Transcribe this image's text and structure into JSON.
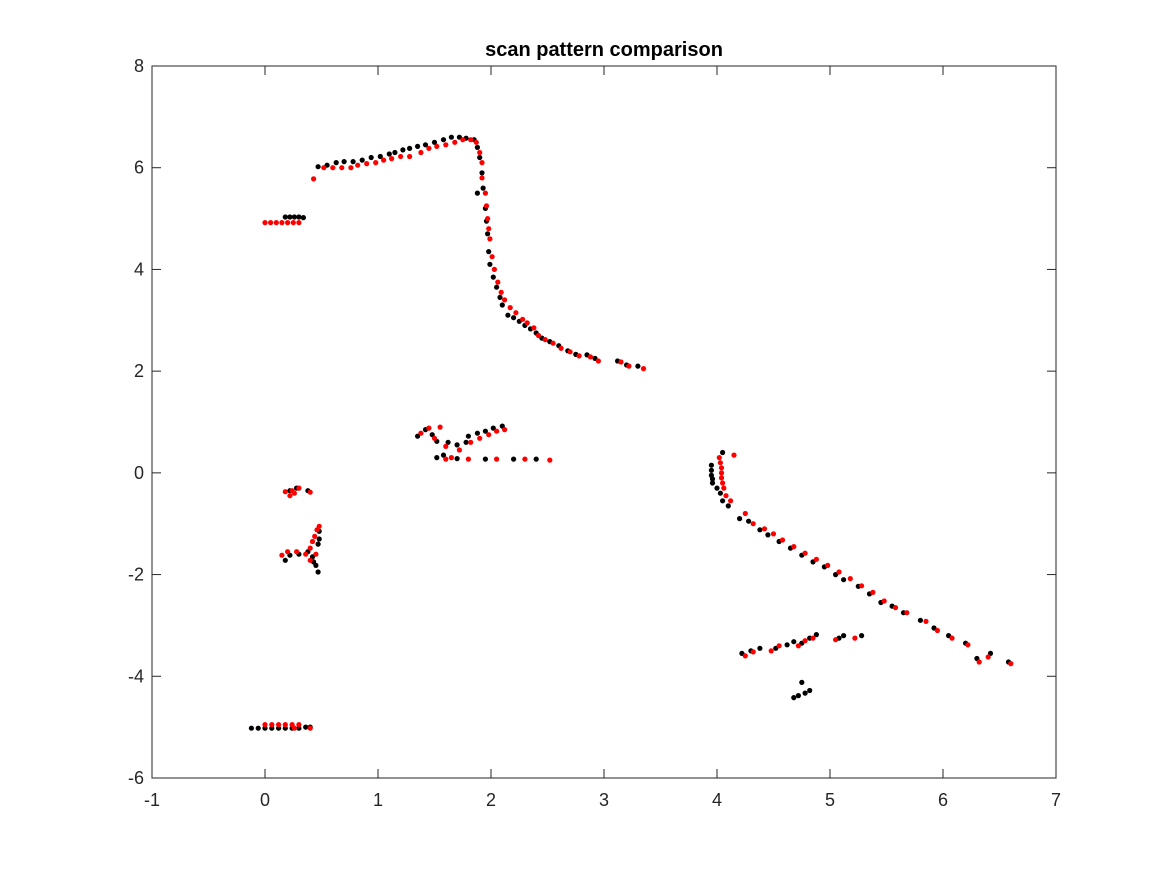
{
  "chart_data": {
    "type": "scatter",
    "title": "scan pattern comparison",
    "xlabel": "",
    "ylabel": "",
    "xlim": [
      -1,
      7
    ],
    "ylim": [
      -6,
      8
    ],
    "xticks": [
      -1,
      0,
      1,
      2,
      3,
      4,
      5,
      6,
      7
    ],
    "yticks": [
      -6,
      -4,
      -2,
      0,
      2,
      4,
      6,
      8
    ],
    "grid": false,
    "box": true,
    "series": [
      {
        "color": "#000000",
        "points": [
          [
            0.18,
            5.03
          ],
          [
            0.22,
            5.03
          ],
          [
            0.26,
            5.03
          ],
          [
            0.3,
            5.03
          ],
          [
            0.34,
            5.02
          ],
          [
            0.47,
            6.02
          ],
          [
            0.55,
            6.05
          ],
          [
            0.63,
            6.1
          ],
          [
            0.7,
            6.12
          ],
          [
            0.78,
            6.12
          ],
          [
            0.86,
            6.15
          ],
          [
            0.94,
            6.2
          ],
          [
            1.02,
            6.22
          ],
          [
            1.1,
            6.27
          ],
          [
            1.15,
            6.3
          ],
          [
            1.22,
            6.35
          ],
          [
            1.28,
            6.38
          ],
          [
            1.35,
            6.42
          ],
          [
            1.42,
            6.45
          ],
          [
            1.5,
            6.5
          ],
          [
            1.58,
            6.55
          ],
          [
            1.65,
            6.6
          ],
          [
            1.72,
            6.6
          ],
          [
            1.78,
            6.58
          ],
          [
            1.85,
            6.55
          ],
          [
            1.88,
            6.4
          ],
          [
            1.9,
            6.2
          ],
          [
            1.92,
            5.9
          ],
          [
            1.93,
            5.6
          ],
          [
            1.88,
            5.5
          ],
          [
            1.95,
            5.2
          ],
          [
            1.96,
            4.95
          ],
          [
            1.97,
            4.7
          ],
          [
            1.98,
            4.35
          ],
          [
            1.99,
            4.1
          ],
          [
            2.02,
            3.85
          ],
          [
            2.05,
            3.65
          ],
          [
            2.08,
            3.45
          ],
          [
            2.1,
            3.3
          ],
          [
            2.15,
            3.1
          ],
          [
            2.2,
            3.05
          ],
          [
            2.25,
            2.98
          ],
          [
            2.3,
            2.9
          ],
          [
            2.35,
            2.83
          ],
          [
            2.4,
            2.75
          ],
          [
            2.45,
            2.65
          ],
          [
            2.52,
            2.58
          ],
          [
            2.6,
            2.5
          ],
          [
            2.68,
            2.4
          ],
          [
            2.75,
            2.33
          ],
          [
            2.85,
            2.32
          ],
          [
            2.92,
            2.25
          ],
          [
            3.12,
            2.2
          ],
          [
            3.2,
            2.12
          ],
          [
            3.3,
            2.1
          ],
          [
            1.35,
            0.72
          ],
          [
            1.42,
            0.85
          ],
          [
            1.48,
            0.75
          ],
          [
            1.52,
            0.62
          ],
          [
            1.52,
            0.3
          ],
          [
            1.58,
            0.35
          ],
          [
            1.62,
            0.6
          ],
          [
            1.7,
            0.55
          ],
          [
            1.78,
            0.6
          ],
          [
            1.8,
            0.72
          ],
          [
            1.88,
            0.78
          ],
          [
            1.95,
            0.82
          ],
          [
            2.02,
            0.88
          ],
          [
            2.1,
            0.92
          ],
          [
            1.7,
            0.28
          ],
          [
            1.95,
            0.27
          ],
          [
            2.2,
            0.27
          ],
          [
            2.4,
            0.27
          ],
          [
            0.22,
            -0.35
          ],
          [
            0.28,
            -0.3
          ],
          [
            0.38,
            -0.35
          ],
          [
            0.18,
            -1.72
          ],
          [
            0.22,
            -1.62
          ],
          [
            0.3,
            -1.6
          ],
          [
            0.38,
            -1.55
          ],
          [
            0.42,
            -1.65
          ],
          [
            0.45,
            -1.82
          ],
          [
            0.47,
            -1.95
          ],
          [
            0.47,
            -1.4
          ],
          [
            0.48,
            -1.3
          ],
          [
            0.48,
            -1.15
          ],
          [
            0.43,
            -1.75
          ],
          [
            -0.12,
            -5.02
          ],
          [
            -0.06,
            -5.02
          ],
          [
            0.0,
            -5.02
          ],
          [
            0.06,
            -5.02
          ],
          [
            0.12,
            -5.02
          ],
          [
            0.18,
            -5.02
          ],
          [
            0.24,
            -5.02
          ],
          [
            0.3,
            -5.02
          ],
          [
            0.36,
            -5.0
          ],
          [
            0.4,
            -5.0
          ],
          [
            3.95,
            0.15
          ],
          [
            3.95,
            0.05
          ],
          [
            3.95,
            -0.05
          ],
          [
            3.96,
            -0.12
          ],
          [
            3.96,
            -0.2
          ],
          [
            4.0,
            -0.3
          ],
          [
            4.03,
            -0.4
          ],
          [
            4.05,
            -0.55
          ],
          [
            4.05,
            0.4
          ],
          [
            4.1,
            -0.65
          ],
          [
            4.2,
            -0.9
          ],
          [
            4.28,
            -0.95
          ],
          [
            4.38,
            -1.12
          ],
          [
            4.45,
            -1.22
          ],
          [
            4.55,
            -1.35
          ],
          [
            4.65,
            -1.48
          ],
          [
            4.75,
            -1.62
          ],
          [
            4.85,
            -1.75
          ],
          [
            4.95,
            -1.85
          ],
          [
            5.05,
            -2.0
          ],
          [
            5.12,
            -2.1
          ],
          [
            5.25,
            -2.23
          ],
          [
            5.35,
            -2.38
          ],
          [
            5.45,
            -2.55
          ],
          [
            5.55,
            -2.62
          ],
          [
            5.65,
            -2.75
          ],
          [
            5.8,
            -2.9
          ],
          [
            5.92,
            -3.05
          ],
          [
            6.05,
            -3.2
          ],
          [
            6.2,
            -3.35
          ],
          [
            6.3,
            -3.65
          ],
          [
            6.42,
            -3.55
          ],
          [
            6.58,
            -3.72
          ],
          [
            4.22,
            -3.55
          ],
          [
            4.3,
            -3.5
          ],
          [
            4.38,
            -3.45
          ],
          [
            4.52,
            -3.45
          ],
          [
            4.62,
            -3.38
          ],
          [
            4.68,
            -3.32
          ],
          [
            4.75,
            -3.35
          ],
          [
            4.82,
            -3.25
          ],
          [
            4.88,
            -3.18
          ],
          [
            5.08,
            -3.25
          ],
          [
            5.12,
            -3.2
          ],
          [
            5.28,
            -3.2
          ],
          [
            4.68,
            -4.42
          ],
          [
            4.72,
            -4.38
          ],
          [
            4.78,
            -4.33
          ],
          [
            4.82,
            -4.28
          ],
          [
            4.75,
            -4.12
          ]
        ]
      },
      {
        "color": "#ff0000",
        "points": [
          [
            0.0,
            4.92
          ],
          [
            0.05,
            4.92
          ],
          [
            0.1,
            4.92
          ],
          [
            0.15,
            4.92
          ],
          [
            0.2,
            4.92
          ],
          [
            0.25,
            4.92
          ],
          [
            0.3,
            4.92
          ],
          [
            0.43,
            5.78
          ],
          [
            0.52,
            6.0
          ],
          [
            0.6,
            6.0
          ],
          [
            0.68,
            6.0
          ],
          [
            0.76,
            6.0
          ],
          [
            0.82,
            6.05
          ],
          [
            0.9,
            6.08
          ],
          [
            0.98,
            6.1
          ],
          [
            1.05,
            6.15
          ],
          [
            1.12,
            6.18
          ],
          [
            1.2,
            6.22
          ],
          [
            1.28,
            6.22
          ],
          [
            1.38,
            6.3
          ],
          [
            1.45,
            6.38
          ],
          [
            1.52,
            6.42
          ],
          [
            1.6,
            6.45
          ],
          [
            1.68,
            6.5
          ],
          [
            1.75,
            6.55
          ],
          [
            1.82,
            6.55
          ],
          [
            1.87,
            6.5
          ],
          [
            1.9,
            6.3
          ],
          [
            1.92,
            6.1
          ],
          [
            1.92,
            5.8
          ],
          [
            1.95,
            5.5
          ],
          [
            1.96,
            5.25
          ],
          [
            1.97,
            5.0
          ],
          [
            1.98,
            4.8
          ],
          [
            1.99,
            4.6
          ],
          [
            2.01,
            4.25
          ],
          [
            2.03,
            4.0
          ],
          [
            2.06,
            3.75
          ],
          [
            2.09,
            3.55
          ],
          [
            2.12,
            3.4
          ],
          [
            2.17,
            3.25
          ],
          [
            2.22,
            3.15
          ],
          [
            2.28,
            3.02
          ],
          [
            2.32,
            2.95
          ],
          [
            2.38,
            2.85
          ],
          [
            2.42,
            2.7
          ],
          [
            2.48,
            2.62
          ],
          [
            2.55,
            2.55
          ],
          [
            2.62,
            2.45
          ],
          [
            2.7,
            2.38
          ],
          [
            2.78,
            2.3
          ],
          [
            2.88,
            2.28
          ],
          [
            2.95,
            2.2
          ],
          [
            3.15,
            2.18
          ],
          [
            3.22,
            2.1
          ],
          [
            3.35,
            2.05
          ],
          [
            1.38,
            0.78
          ],
          [
            1.45,
            0.88
          ],
          [
            1.55,
            0.9
          ],
          [
            1.5,
            0.68
          ],
          [
            1.6,
            0.52
          ],
          [
            1.65,
            0.3
          ],
          [
            1.72,
            0.45
          ],
          [
            1.82,
            0.6
          ],
          [
            1.9,
            0.68
          ],
          [
            1.98,
            0.75
          ],
          [
            2.05,
            0.82
          ],
          [
            2.12,
            0.85
          ],
          [
            1.6,
            0.27
          ],
          [
            1.8,
            0.27
          ],
          [
            2.05,
            0.27
          ],
          [
            2.3,
            0.27
          ],
          [
            2.52,
            0.25
          ],
          [
            0.18,
            -0.37
          ],
          [
            0.24,
            -0.35
          ],
          [
            0.3,
            -0.3
          ],
          [
            0.26,
            -0.4
          ],
          [
            0.22,
            -0.45
          ],
          [
            0.4,
            -0.38
          ],
          [
            0.15,
            -1.62
          ],
          [
            0.2,
            -1.55
          ],
          [
            0.28,
            -1.55
          ],
          [
            0.36,
            -1.6
          ],
          [
            0.4,
            -1.48
          ],
          [
            0.42,
            -1.35
          ],
          [
            0.44,
            -1.25
          ],
          [
            0.46,
            -1.12
          ],
          [
            0.48,
            -1.05
          ],
          [
            0.4,
            -1.72
          ],
          [
            0.45,
            -1.6
          ],
          [
            0.0,
            -4.95
          ],
          [
            0.06,
            -4.95
          ],
          [
            0.12,
            -4.95
          ],
          [
            0.18,
            -4.95
          ],
          [
            0.24,
            -4.95
          ],
          [
            0.3,
            -4.95
          ],
          [
            0.26,
            -5.02
          ],
          [
            0.4,
            -5.02
          ],
          [
            4.02,
            0.3
          ],
          [
            4.03,
            0.2
          ],
          [
            4.04,
            0.1
          ],
          [
            4.04,
            0.0
          ],
          [
            4.04,
            -0.1
          ],
          [
            4.05,
            -0.2
          ],
          [
            4.06,
            -0.3
          ],
          [
            4.08,
            -0.45
          ],
          [
            4.12,
            -0.55
          ],
          [
            4.15,
            0.35
          ],
          [
            4.25,
            -0.8
          ],
          [
            4.32,
            -1.0
          ],
          [
            4.42,
            -1.1
          ],
          [
            4.5,
            -1.2
          ],
          [
            4.58,
            -1.32
          ],
          [
            4.68,
            -1.45
          ],
          [
            4.78,
            -1.58
          ],
          [
            4.88,
            -1.7
          ],
          [
            4.98,
            -1.82
          ],
          [
            5.08,
            -1.95
          ],
          [
            5.18,
            -2.08
          ],
          [
            5.28,
            -2.22
          ],
          [
            5.38,
            -2.35
          ],
          [
            5.48,
            -2.52
          ],
          [
            5.58,
            -2.65
          ],
          [
            5.68,
            -2.75
          ],
          [
            5.85,
            -2.92
          ],
          [
            5.95,
            -3.1
          ],
          [
            6.08,
            -3.25
          ],
          [
            6.22,
            -3.38
          ],
          [
            6.32,
            -3.72
          ],
          [
            6.4,
            -3.62
          ],
          [
            6.6,
            -3.75
          ],
          [
            4.25,
            -3.6
          ],
          [
            4.32,
            -3.52
          ],
          [
            4.48,
            -3.5
          ],
          [
            4.55,
            -3.4
          ],
          [
            4.72,
            -3.4
          ],
          [
            4.78,
            -3.3
          ],
          [
            4.85,
            -3.25
          ],
          [
            5.05,
            -3.28
          ],
          [
            5.22,
            -3.25
          ]
        ]
      }
    ]
  }
}
